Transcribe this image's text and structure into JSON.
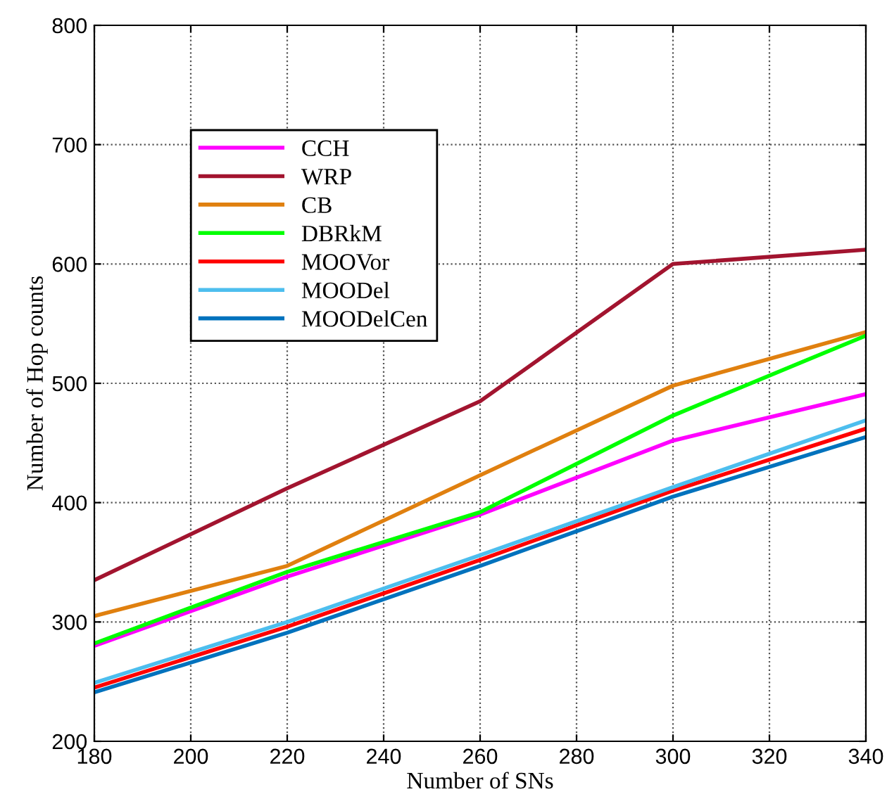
{
  "chart_data": {
    "type": "line",
    "xlabel": "Number of SNs",
    "ylabel": "Number of Hop counts",
    "x": [
      180,
      220,
      260,
      300,
      340
    ],
    "xlim": [
      180,
      340
    ],
    "xticks": [
      180,
      200,
      220,
      240,
      260,
      280,
      300,
      320,
      340
    ],
    "ylim": [
      200,
      800
    ],
    "yticks": [
      200,
      300,
      400,
      500,
      600,
      700,
      800
    ],
    "grid": true,
    "legend": "top left",
    "marker": "none",
    "line_style": "solid",
    "series": [
      {
        "name": "CCH",
        "color": "#ff00ff",
        "values": [
          280,
          338,
          390,
          452,
          491
        ]
      },
      {
        "name": "WRP",
        "color": "#a2142f",
        "values": [
          335,
          412,
          485,
          600,
          612
        ]
      },
      {
        "name": "CB",
        "color": "#e0800f",
        "values": [
          305,
          347,
          423,
          498,
          543
        ]
      },
      {
        "name": "DBRkM",
        "color": "#00ff00",
        "values": [
          282,
          342,
          392,
          473,
          540
        ]
      },
      {
        "name": "MOOVor",
        "color": "#ff0000",
        "values": [
          245,
          296,
          352,
          410,
          462
        ]
      },
      {
        "name": "MOODel",
        "color": "#4dbeee",
        "values": [
          249,
          300,
          356,
          413,
          469
        ]
      },
      {
        "name": "MOODelCen",
        "color": "#0072bd",
        "values": [
          241,
          291,
          347,
          405,
          455
        ]
      }
    ]
  }
}
